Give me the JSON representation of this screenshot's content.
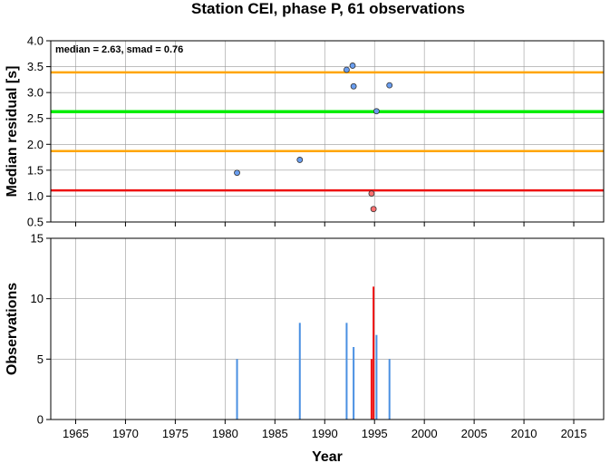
{
  "chart_data": [
    {
      "type": "scatter",
      "title": "Station CEI, phase P, 61 observations",
      "ylabel": "Median residual [s]",
      "xlabel": "",
      "xlim": [
        1962.5,
        2018
      ],
      "ylim": [
        0.5,
        4.0
      ],
      "yticks": [
        "0.5",
        "1.0",
        "1.5",
        "2.0",
        "2.5",
        "3.0",
        "3.5",
        "4.0"
      ],
      "grid": true,
      "annotation": "median = 2.63, smad = 0.76",
      "hlines": [
        {
          "role": "upper",
          "value": 3.39,
          "color": "#ffa500"
        },
        {
          "role": "median",
          "value": 2.63,
          "color": "#00ee00"
        },
        {
          "role": "lower",
          "value": 1.87,
          "color": "#ffa500"
        },
        {
          "role": "threshold",
          "value": 1.11,
          "color": "#ee1111"
        }
      ],
      "series": [
        {
          "color": "#6a9ef0",
          "points": [
            {
              "x": 1981.2,
              "y": 1.45
            },
            {
              "x": 1987.5,
              "y": 1.7
            },
            {
              "x": 1992.2,
              "y": 3.44
            },
            {
              "x": 1992.8,
              "y": 3.52
            },
            {
              "x": 1992.9,
              "y": 3.12
            },
            {
              "x": 1995.2,
              "y": 2.64
            },
            {
              "x": 1996.5,
              "y": 3.14
            }
          ]
        },
        {
          "color": "#ff7070",
          "points": [
            {
              "x": 1994.7,
              "y": 1.05
            },
            {
              "x": 1994.9,
              "y": 0.75
            }
          ]
        }
      ]
    },
    {
      "type": "bar",
      "title": "",
      "ylabel": "Observations",
      "xlabel": "Year",
      "xlim": [
        1962.5,
        2018
      ],
      "ylim": [
        0,
        15
      ],
      "yticks": [
        "0",
        "5",
        "10",
        "15"
      ],
      "xticks": [
        "1965",
        "1970",
        "1975",
        "1980",
        "1985",
        "1990",
        "1995",
        "2000",
        "2005",
        "2010",
        "2015"
      ],
      "grid": true,
      "bars": [
        {
          "x": 1981.2,
          "value": 5,
          "color": "#4a90e2"
        },
        {
          "x": 1987.5,
          "value": 8,
          "color": "#4a90e2"
        },
        {
          "x": 1992.2,
          "value": 8,
          "color": "#4a90e2"
        },
        {
          "x": 1992.9,
          "value": 6,
          "color": "#4a90e2"
        },
        {
          "x": 1994.7,
          "value": 5,
          "color": "#ee1111"
        },
        {
          "x": 1994.9,
          "value": 11,
          "color": "#ee1111"
        },
        {
          "x": 1995.2,
          "value": 7,
          "color": "#4a90e2"
        },
        {
          "x": 1996.5,
          "value": 5,
          "color": "#4a90e2"
        }
      ]
    }
  ]
}
